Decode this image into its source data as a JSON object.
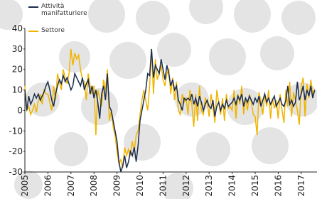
{
  "chart_data": {
    "type": "line",
    "categories": [
      "2005",
      null,
      null,
      null,
      null,
      null,
      null,
      null,
      null,
      null,
      null,
      null,
      "2006",
      null,
      null,
      null,
      null,
      null,
      null,
      null,
      null,
      null,
      null,
      null,
      "2007",
      null,
      null,
      null,
      null,
      null,
      null,
      null,
      null,
      null,
      null,
      null,
      "2008",
      null,
      null,
      null,
      null,
      null,
      null,
      null,
      null,
      null,
      null,
      null,
      "2009",
      null,
      null,
      null,
      null,
      null,
      null,
      null,
      null,
      null,
      null,
      null,
      "2010",
      null,
      null,
      null,
      null,
      null,
      null,
      null,
      null,
      null,
      null,
      null,
      "2011",
      null,
      null,
      null,
      null,
      null,
      null,
      null,
      null,
      null,
      null,
      null,
      "2012",
      null,
      null,
      null,
      null,
      null,
      null,
      null,
      null,
      null,
      null,
      null,
      "2013",
      null,
      null,
      null,
      null,
      null,
      null,
      null,
      null,
      null,
      null,
      null,
      "2014",
      null,
      null,
      null,
      null,
      null,
      null,
      null,
      null,
      null,
      null,
      null,
      "2015",
      null,
      null,
      null,
      null,
      null,
      null,
      null,
      null,
      null,
      null,
      null,
      "2016",
      null,
      null,
      null,
      null,
      null,
      null,
      null,
      null,
      null,
      null,
      null,
      "2017",
      null,
      null,
      null,
      null,
      null,
      null,
      null
    ],
    "series": [
      {
        "name": "Attività manifatturiere",
        "color": "#1b2d4e",
        "values": [
          10,
          0,
          7,
          3,
          5,
          8,
          6,
          8,
          5,
          7,
          9,
          12,
          14,
          10,
          5,
          2,
          8,
          12,
          15,
          13,
          17,
          14,
          16,
          13,
          10,
          12,
          18,
          16,
          14,
          12,
          16,
          10,
          13,
          15,
          8,
          12,
          6,
          10,
          4,
          -4,
          8,
          12,
          5,
          18,
          2,
          0,
          -5,
          -10,
          -15,
          -25,
          -30,
          -27,
          -22,
          -28,
          -25,
          -20,
          -22,
          -18,
          -25,
          -17,
          -5,
          0,
          5,
          10,
          18,
          17,
          30,
          16,
          22,
          20,
          18,
          25,
          20,
          15,
          22,
          18,
          12,
          15,
          10,
          12,
          5,
          3,
          0,
          6,
          5,
          6,
          5,
          8,
          3,
          6,
          2,
          7,
          4,
          0,
          3,
          5,
          2,
          1,
          5,
          -3,
          2,
          4,
          0,
          3,
          1,
          5,
          2,
          3,
          4,
          6,
          3,
          7,
          5,
          8,
          2,
          6,
          4,
          7,
          5,
          3,
          6,
          4,
          7,
          2,
          5,
          8,
          4,
          6,
          3,
          5,
          7,
          2,
          4,
          6,
          3,
          2,
          5,
          12,
          3,
          5,
          2,
          4,
          14,
          5,
          8,
          12,
          5,
          10,
          7,
          12,
          6,
          10
        ]
      },
      {
        "name": "Settore",
        "color": "#f0b400",
        "values": [
          12,
          0,
          2,
          -2,
          0,
          3,
          -1,
          5,
          8,
          3,
          10,
          8,
          8,
          4,
          0,
          12,
          5,
          18,
          14,
          10,
          20,
          16,
          13,
          18,
          30,
          22,
          28,
          25,
          27,
          20,
          15,
          14,
          5,
          18,
          12,
          8,
          12,
          -12,
          10,
          6,
          2,
          15,
          10,
          20,
          -5,
          0,
          -8,
          -12,
          -20,
          -26,
          -24,
          -28,
          -18,
          -22,
          -19,
          -22,
          -15,
          -20,
          -12,
          -10,
          -2,
          5,
          10,
          5,
          0,
          12,
          30,
          8,
          25,
          15,
          18,
          22,
          15,
          12,
          18,
          20,
          8,
          16,
          5,
          14,
          0,
          -2,
          8,
          4,
          6,
          -2,
          10,
          3,
          -8,
          8,
          -5,
          12,
          0,
          -2,
          6,
          4,
          -3,
          8,
          2,
          -6,
          10,
          4,
          -2,
          6,
          -5,
          8,
          1,
          2,
          0,
          10,
          -4,
          8,
          3,
          12,
          -2,
          6,
          0,
          8,
          4,
          -2,
          -3,
          -12,
          9,
          4,
          -2,
          8,
          2,
          10,
          -4,
          6,
          1,
          5,
          -4,
          8,
          0,
          -6,
          10,
          2,
          14,
          -3,
          9,
          5,
          0,
          -7,
          12,
          16,
          -3,
          13,
          6,
          15,
          8,
          10
        ]
      }
    ],
    "ylim": [
      -30,
      40
    ],
    "yticks": [
      -30,
      -20,
      -10,
      0,
      10,
      20,
      30,
      40
    ]
  }
}
